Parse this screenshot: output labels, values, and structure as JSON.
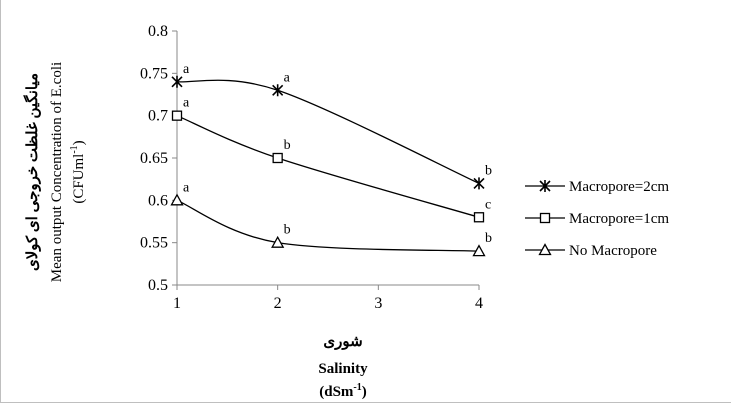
{
  "chart_data": {
    "type": "line",
    "x": [
      "1",
      "2",
      "3",
      "4"
    ],
    "ylim": [
      0.5,
      0.8
    ],
    "yticks": [
      "0.5",
      "0.55",
      "0.6",
      "0.65",
      "0.7",
      "0.75",
      "0.8"
    ],
    "grid": false,
    "legend_position": "right",
    "ylabel_fa": "میانگین غلظت خروجی ای کولای",
    "ylabel_en": "Mean output Concentration of E.coli",
    "ylabel_unit": "(CFUml",
    "ylabel_unit_sup": "-1",
    "ylabel_unit_end": ")",
    "xlabel_fa": "شوری",
    "xlabel_en": "Salinity",
    "xlabel_unit": "(dSm",
    "xlabel_unit_sup": "-1",
    "xlabel_unit_end": ")",
    "series": [
      {
        "name": "Macropore=2cm",
        "marker": "star",
        "points": [
          {
            "x": 1,
            "y": 0.74,
            "label": "a"
          },
          {
            "x": 2,
            "y": 0.73,
            "label": "a"
          },
          {
            "x": 4,
            "y": 0.62,
            "label": "b"
          }
        ]
      },
      {
        "name": "Macropore=1cm",
        "marker": "square",
        "points": [
          {
            "x": 1,
            "y": 0.7,
            "label": "a"
          },
          {
            "x": 2,
            "y": 0.65,
            "label": "b"
          },
          {
            "x": 4,
            "y": 0.58,
            "label": "c"
          }
        ]
      },
      {
        "name": "No Macropore",
        "marker": "triangle",
        "points": [
          {
            "x": 1,
            "y": 0.6,
            "label": "a"
          },
          {
            "x": 2,
            "y": 0.55,
            "label": "b"
          },
          {
            "x": 4,
            "y": 0.54,
            "label": "b"
          }
        ]
      }
    ]
  }
}
